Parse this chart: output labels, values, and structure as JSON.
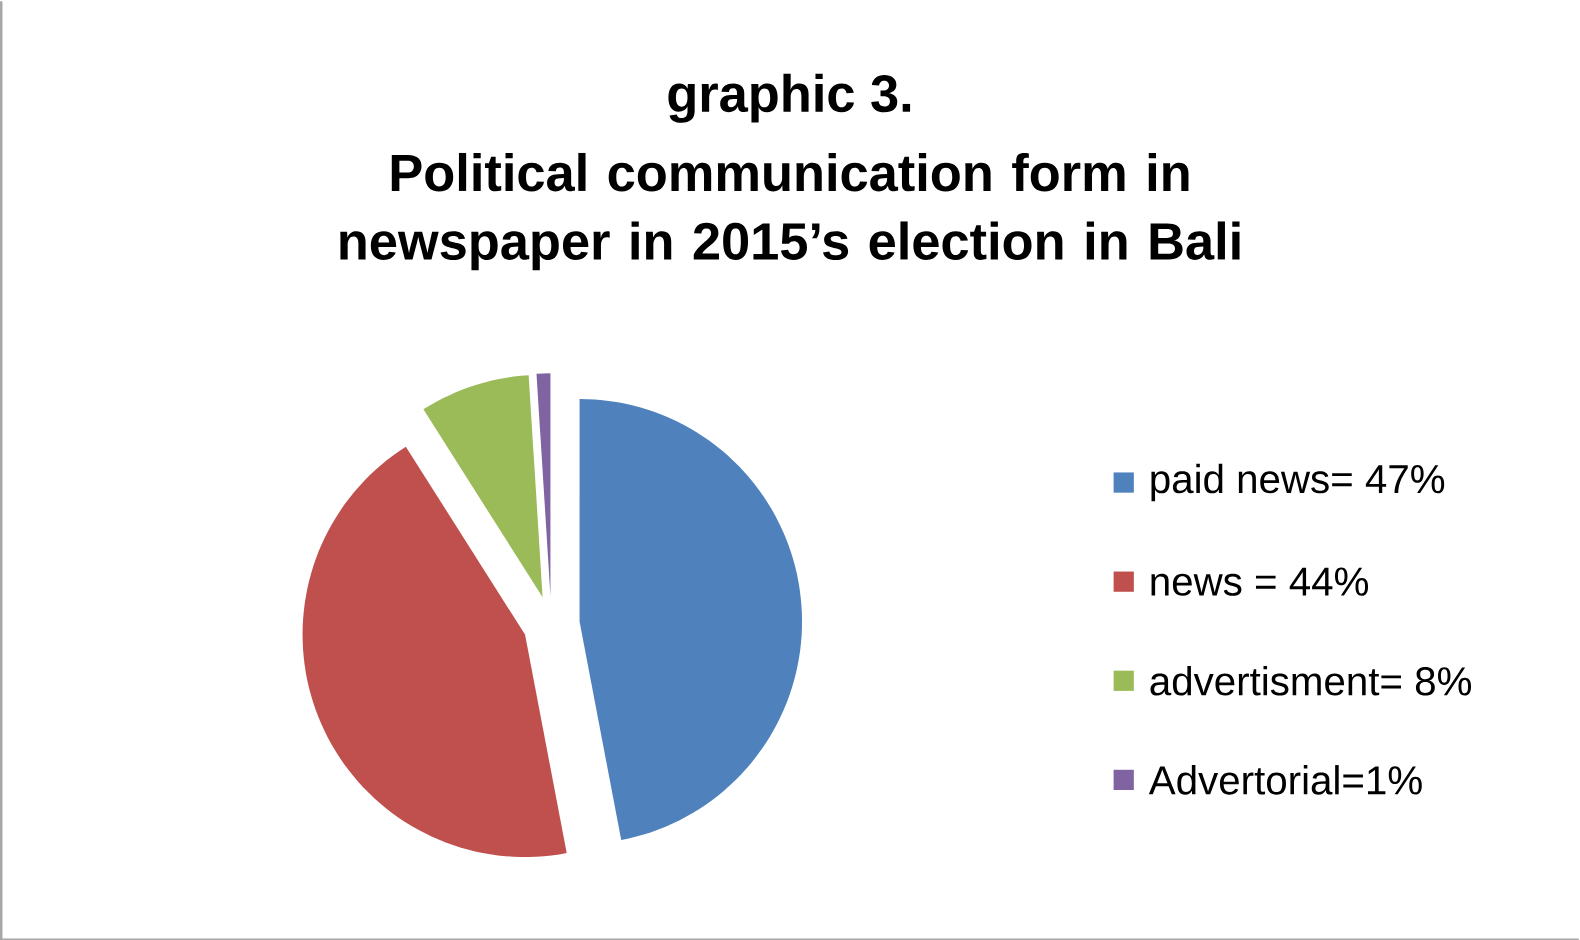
{
  "chart_data": {
    "type": "pie",
    "title": "graphic 3.",
    "subtitle": "Political communication form in newspaper in 2015’s election in Bali",
    "categories": [
      "paid news= 47%",
      "news = 44%",
      "advertisment= 8%",
      "Advertorial=1%"
    ],
    "values": [
      47,
      44,
      8,
      1
    ],
    "colors": [
      "#4f81bd",
      "#c0504d",
      "#9bbb59",
      "#8064a2"
    ],
    "legend": "right"
  }
}
